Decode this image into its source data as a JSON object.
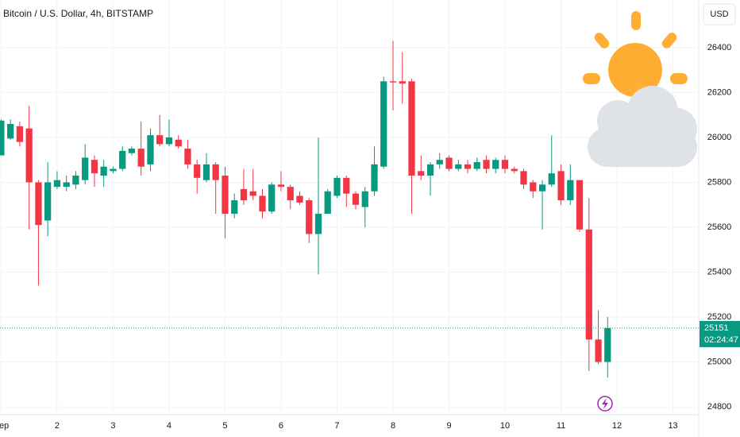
{
  "chart_data": {
    "type": "candlestick",
    "title": "Bitcoin / U.S. Dollar, 4h, BITSTAMP",
    "currency": "USD",
    "x": [
      1,
      1.167,
      1.333,
      1.5,
      1.667,
      1.833,
      2,
      2.167,
      2.333,
      2.5,
      2.667,
      2.833,
      3,
      3.167,
      3.333,
      3.5,
      3.667,
      3.833,
      4,
      4.167,
      4.333,
      4.5,
      4.667,
      4.833,
      5,
      5.167,
      5.333,
      5.5,
      5.667,
      5.833,
      6,
      6.167,
      6.333,
      6.5,
      6.667,
      6.833,
      7,
      7.167,
      7.333,
      7.5,
      7.667,
      7.833,
      8,
      8.167,
      8.333,
      8.5,
      8.667,
      8.833,
      9,
      9.167,
      9.333,
      9.5,
      9.667,
      9.833,
      10,
      10.167,
      10.333,
      10.5,
      10.667,
      10.833,
      11,
      11.167,
      11.333,
      11.5,
      11.667,
      11.833
    ],
    "open": [
      25920,
      25995,
      26050,
      26040,
      25800,
      25630,
      25780,
      25780,
      25790,
      25810,
      25900,
      25830,
      25850,
      25860,
      25930,
      25950,
      25880,
      26010,
      25970,
      25990,
      25950,
      25880,
      25810,
      25880,
      25830,
      25660,
      25770,
      25760,
      25740,
      25670,
      25790,
      25780,
      25740,
      25720,
      25570,
      25660,
      25740,
      25820,
      25750,
      25690,
      25760,
      25870,
      26250,
      26250,
      26250,
      25850,
      25830,
      25880,
      25910,
      25860,
      25880,
      25860,
      25900,
      25860,
      25900,
      25860,
      25850,
      25800,
      25760,
      25790,
      25850,
      25720,
      25810,
      25590,
      25100,
      25000
    ],
    "high": [
      26080,
      26080,
      26070,
      26140,
      25810,
      25890,
      25850,
      25830,
      25850,
      25970,
      25920,
      25900,
      25870,
      25960,
      25960,
      26070,
      26040,
      26100,
      26080,
      26010,
      25990,
      25900,
      25930,
      25890,
      25870,
      25750,
      25860,
      25860,
      25770,
      25800,
      25850,
      25790,
      25760,
      25730,
      26000,
      25770,
      25830,
      25830,
      25760,
      25780,
      25960,
      26270,
      26430,
      26380,
      26260,
      25920,
      25890,
      25930,
      25920,
      25900,
      25900,
      25910,
      25920,
      25910,
      25920,
      25870,
      25860,
      25810,
      25810,
      26010,
      25880,
      25880,
      25810,
      25730,
      25230,
      25200
    ],
    "low": [
      25920,
      25990,
      25960,
      25590,
      25340,
      25560,
      25770,
      25760,
      25770,
      25790,
      25780,
      25780,
      25840,
      25850,
      25920,
      25830,
      25850,
      25960,
      25960,
      25950,
      25860,
      25750,
      25800,
      25660,
      25550,
      25640,
      25700,
      25720,
      25640,
      25660,
      25760,
      25680,
      25700,
      25530,
      25390,
      25660,
      25730,
      25690,
      25680,
      25600,
      25740,
      25860,
      26120,
      26150,
      25660,
      25810,
      25740,
      25860,
      25850,
      25850,
      25840,
      25850,
      25840,
      25840,
      25840,
      25840,
      25770,
      25730,
      25590,
      25780,
      25700,
      25700,
      25580,
      24960,
      24990,
      24930
    ],
    "close": [
      26075,
      26060,
      25980,
      25800,
      25610,
      25800,
      25810,
      25800,
      25830,
      25910,
      25840,
      25870,
      25860,
      25940,
      25950,
      25870,
      26010,
      25970,
      26000,
      25960,
      25880,
      25820,
      25880,
      25810,
      25660,
      25720,
      25720,
      25740,
      25670,
      25790,
      25780,
      25720,
      25710,
      25570,
      25660,
      25760,
      25820,
      25750,
      25700,
      25760,
      25880,
      26250,
      26245,
      26240,
      25830,
      25830,
      25880,
      25900,
      25860,
      25880,
      25860,
      25890,
      25860,
      25900,
      25860,
      25850,
      25790,
      25760,
      25790,
      25840,
      25720,
      25810,
      25590,
      25100,
      25000,
      25151
    ],
    "up_color": "#089981",
    "down_color": "#f23645",
    "last_price": 25151,
    "countdown": "02:24:47",
    "xlim": [
      0.98,
      13.46
    ],
    "xticks": [
      {
        "value": 1,
        "label": "Sep"
      },
      2,
      3,
      4,
      5,
      6,
      7,
      8,
      9,
      10,
      11,
      12,
      13
    ],
    "ylim": [
      24765,
      26612
    ],
    "yticks": [
      24800,
      25000,
      25200,
      25400,
      25600,
      25800,
      26000,
      26200,
      26400
    ],
    "grid": true
  }
}
